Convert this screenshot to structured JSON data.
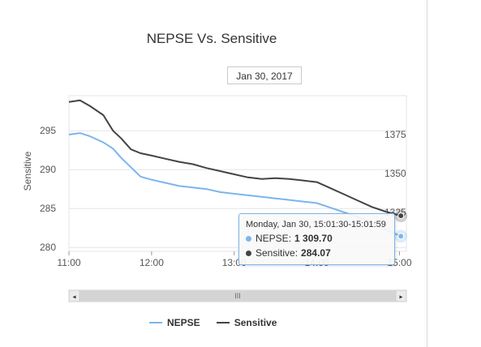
{
  "chart_data": {
    "type": "line",
    "title": "NEPSE Vs. Sensitive",
    "date": "Jan 30, 2017",
    "x_ticks": [
      "11:00",
      "12:00",
      "13:00",
      "14:00",
      "15:00"
    ],
    "x_range": [
      "11:00",
      "15:05"
    ],
    "y_left": {
      "label": "Sensitive",
      "ticks": [
        280,
        285,
        290,
        295
      ],
      "range": [
        279.5,
        299.5
      ]
    },
    "y_right": {
      "ticks": [
        1325,
        1350,
        1375
      ],
      "range": [
        1300,
        1400
      ]
    },
    "series": [
      {
        "name": "NEPSE",
        "color": "#7cb5ec",
        "axis": "right",
        "points": [
          [
            "11:00",
            1375
          ],
          [
            "11:08",
            1376
          ],
          [
            "11:15",
            1374
          ],
          [
            "11:25",
            1370
          ],
          [
            "11:32",
            1366
          ],
          [
            "11:38",
            1360
          ],
          [
            "11:45",
            1354
          ],
          [
            "11:52",
            1348
          ],
          [
            "12:00",
            1346
          ],
          [
            "12:10",
            1344
          ],
          [
            "12:20",
            1342
          ],
          [
            "12:30",
            1341
          ],
          [
            "12:40",
            1340
          ],
          [
            "12:50",
            1338
          ],
          [
            "13:00",
            1337
          ],
          [
            "13:10",
            1336
          ],
          [
            "13:20",
            1335
          ],
          [
            "13:30",
            1334
          ],
          [
            "13:40",
            1333
          ],
          [
            "13:50",
            1332
          ],
          [
            "14:00",
            1331
          ],
          [
            "14:10",
            1328
          ],
          [
            "14:20",
            1325
          ],
          [
            "14:30",
            1322
          ],
          [
            "14:40",
            1318
          ],
          [
            "14:50",
            1314
          ],
          [
            "15:01",
            1309.7
          ]
        ]
      },
      {
        "name": "Sensitive",
        "color": "#434348",
        "axis": "left",
        "points": [
          [
            "11:00",
            298.7
          ],
          [
            "11:08",
            298.9
          ],
          [
            "11:15",
            298.2
          ],
          [
            "11:25",
            297.0
          ],
          [
            "11:32",
            295.0
          ],
          [
            "11:38",
            294.0
          ],
          [
            "11:45",
            292.6
          ],
          [
            "11:52",
            292.1
          ],
          [
            "12:00",
            291.8
          ],
          [
            "12:10",
            291.4
          ],
          [
            "12:20",
            291.0
          ],
          [
            "12:30",
            290.7
          ],
          [
            "12:40",
            290.2
          ],
          [
            "12:50",
            289.8
          ],
          [
            "13:00",
            289.4
          ],
          [
            "13:10",
            289.0
          ],
          [
            "13:20",
            288.8
          ],
          [
            "13:30",
            288.9
          ],
          [
            "13:40",
            288.8
          ],
          [
            "13:50",
            288.6
          ],
          [
            "14:00",
            288.4
          ],
          [
            "14:10",
            287.6
          ],
          [
            "14:20",
            286.8
          ],
          [
            "14:30",
            286.0
          ],
          [
            "14:40",
            285.2
          ],
          [
            "14:50",
            284.6
          ],
          [
            "15:01",
            284.07
          ]
        ]
      }
    ],
    "tooltip": {
      "header": "Monday, Jan 30, 15:01:30-15:01:59",
      "rows": [
        {
          "name": "NEPSE",
          "value": "1 309.70",
          "color": "#7cb5ec"
        },
        {
          "name": "Sensitive",
          "value": "284.07",
          "color": "#434348"
        }
      ]
    },
    "navigator": {
      "handle_label": "III"
    },
    "legend": {
      "position": "bottom"
    }
  }
}
